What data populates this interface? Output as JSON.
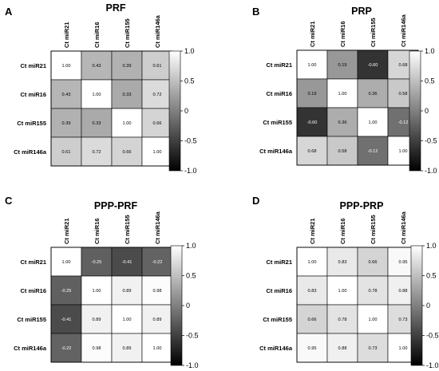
{
  "chart_data": [
    {
      "type": "heatmap",
      "panel": "A",
      "title": "PRF",
      "rows": [
        "Ct miR21",
        "Ct miR16",
        "Ct miR155",
        "Ct miR146a"
      ],
      "columns": [
        "Ct miR21",
        "Ct miR16",
        "Ct miR155",
        "Ct miR146a"
      ],
      "values": [
        [
          1.0,
          0.43,
          0.39,
          0.61
        ],
        [
          0.43,
          1.0,
          0.33,
          0.72
        ],
        [
          0.39,
          0.33,
          1.0,
          0.66
        ],
        [
          0.61,
          0.72,
          0.66,
          1.0
        ]
      ],
      "value_labels": [
        [
          "1.00",
          "0.43",
          "0.39",
          "0.61"
        ],
        [
          "0.43",
          "1.00",
          "0.33",
          "0.72"
        ],
        [
          "0.39",
          "0.33",
          "1.00",
          "0.66"
        ],
        [
          "0.61",
          "0.72",
          "0.66",
          "1.00"
        ]
      ],
      "colorbar": {
        "range": [
          -1.0,
          1.0
        ],
        "ticks": [
          "1.0",
          "0.5",
          "0",
          "-0.5",
          "-1.0"
        ],
        "low_color": "#000000",
        "high_color": "#ffffff"
      }
    },
    {
      "type": "heatmap",
      "panel": "B",
      "title": "PRP",
      "rows": [
        "Ct miR21",
        "Ct miR16",
        "Ct miR155",
        "Ct miR146a"
      ],
      "columns": [
        "Ct miR21",
        "Ct miR16",
        "Ct miR155",
        "Ct miR146a"
      ],
      "values": [
        [
          1.0,
          0.19,
          -0.6,
          0.68
        ],
        [
          0.19,
          1.0,
          0.36,
          0.58
        ],
        [
          -0.6,
          0.36,
          1.0,
          -0.12
        ],
        [
          0.68,
          0.58,
          -0.12,
          1.0
        ]
      ],
      "value_labels": [
        [
          "1.00",
          "0.19",
          "-0.60",
          "0.68"
        ],
        [
          "0.19",
          "1.00",
          "0.36",
          "0.58"
        ],
        [
          "-0.60",
          "0.36",
          "1.00",
          "-0.12"
        ],
        [
          "0.68",
          "0.58",
          "-0.12",
          "1.00"
        ]
      ],
      "colorbar": {
        "range": [
          -1.0,
          1.0
        ],
        "ticks": [
          "1.0",
          "0.5",
          "0",
          "-0.5",
          "-1.0"
        ],
        "low_color": "#000000",
        "high_color": "#ffffff"
      }
    },
    {
      "type": "heatmap",
      "panel": "C",
      "title": "PPP-PRF",
      "rows": [
        "Ct miR21",
        "Ct miR16",
        "Ct miR155",
        "Ct miR146a"
      ],
      "columns": [
        "Ct miR21",
        "Ct miR16",
        "Ct miR155",
        "Ct miR146a"
      ],
      "values": [
        [
          1.0,
          -0.25,
          -0.41,
          -0.22
        ],
        [
          -0.25,
          1.0,
          0.89,
          0.98
        ],
        [
          -0.41,
          0.89,
          1.0,
          0.89
        ],
        [
          -0.22,
          0.98,
          0.89,
          1.0
        ]
      ],
      "value_labels": [
        [
          "1.00",
          "-0.25",
          "-0.41",
          "-0.22"
        ],
        [
          "-0.25",
          "1.00",
          "0.89",
          "0.98"
        ],
        [
          "-0.41",
          "0.89",
          "1.00",
          "0.89"
        ],
        [
          "-0.22",
          "0.98",
          "0.89",
          "1.00"
        ]
      ],
      "colorbar": {
        "range": [
          -1.0,
          1.0
        ],
        "ticks": [
          "1.0",
          "0.5",
          "0",
          "-0.5",
          "-1.0"
        ],
        "low_color": "#000000",
        "high_color": "#ffffff"
      }
    },
    {
      "type": "heatmap",
      "panel": "D",
      "title": "PPP-PRP",
      "rows": [
        "Ct miR21",
        "Ct miR16",
        "Ct miR155",
        "Ct miR146a"
      ],
      "columns": [
        "Ct miR21",
        "Ct miR16",
        "Ct miR155",
        "Ct miR146a"
      ],
      "values": [
        [
          1.0,
          0.83,
          0.66,
          0.95
        ],
        [
          0.83,
          1.0,
          0.78,
          0.88
        ],
        [
          0.66,
          0.78,
          1.0,
          0.73
        ],
        [
          0.95,
          0.88,
          0.73,
          1.0
        ]
      ],
      "value_labels": [
        [
          "1.00",
          "0.83",
          "0.66",
          "0.95"
        ],
        [
          "0.83",
          "1.00",
          "0.78",
          "0.88"
        ],
        [
          "0.66",
          "0.78",
          "1.00",
          "0.73"
        ],
        [
          "0.95",
          "0.88",
          "0.73",
          "1.00"
        ]
      ],
      "colorbar": {
        "range": [
          -1.0,
          1.0
        ],
        "ticks": [
          "1.0",
          "0.5",
          "0",
          "-0.5",
          "-1.0"
        ],
        "low_color": "#000000",
        "high_color": "#ffffff"
      }
    }
  ]
}
